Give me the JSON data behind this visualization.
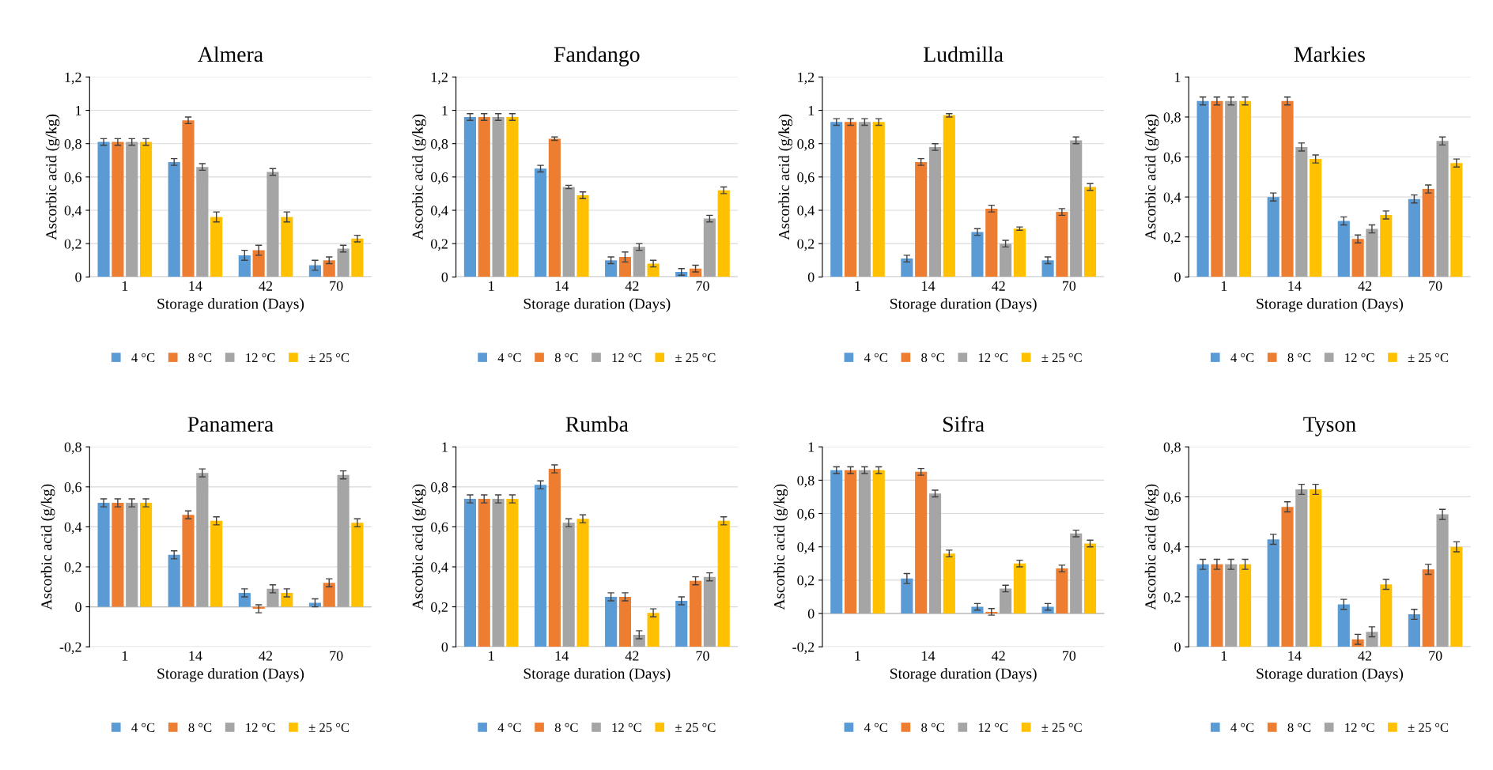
{
  "chart_data": [
    {
      "type": "bar",
      "title": "Almera",
      "xlabel": "Storage duration (Days)",
      "ylabel": "Ascorbic acid (g/kg)",
      "categories": [
        "1",
        "14",
        "42",
        "70"
      ],
      "ylim": [
        0,
        1.2
      ],
      "yticks": [
        0,
        {
          "value": 0.2,
          "label": "0,2"
        },
        {
          "value": 0.4,
          "label": "0,4"
        },
        {
          "value": 0.6,
          "label": "0,6"
        },
        {
          "value": 0.8,
          "label": "0,8"
        },
        1,
        {
          "value": 1.2,
          "label": "1,2"
        }
      ],
      "grid": "y",
      "legend": "bottom",
      "series": [
        {
          "name": "4 °C",
          "color": "#5b9bd5",
          "values": [
            0.81,
            0.69,
            0.13,
            0.07
          ],
          "errors": [
            0.02,
            0.02,
            0.03,
            0.03
          ]
        },
        {
          "name": "8 °C",
          "color": "#ed7d31",
          "values": [
            0.81,
            0.94,
            0.16,
            0.1
          ],
          "errors": [
            0.02,
            0.02,
            0.03,
            0.02
          ]
        },
        {
          "name": "12 °C",
          "color": "#a5a5a5",
          "values": [
            0.81,
            0.66,
            0.63,
            0.17
          ],
          "errors": [
            0.02,
            0.02,
            0.02,
            0.02
          ]
        },
        {
          "name": "± 25 °C",
          "color": "#ffc000",
          "values": [
            0.81,
            0.36,
            0.36,
            0.23
          ],
          "errors": [
            0.02,
            0.03,
            0.03,
            0.02
          ]
        }
      ]
    },
    {
      "type": "bar",
      "title": "Fandango",
      "xlabel": "Storage duration (Days)",
      "ylabel": "Ascorbic acid (g/kg)",
      "categories": [
        "1",
        "14",
        "42",
        "70"
      ],
      "ylim": [
        0,
        1.2
      ],
      "yticks": [
        0,
        {
          "value": 0.2,
          "label": "0,2"
        },
        {
          "value": 0.4,
          "label": "0,4"
        },
        {
          "value": 0.6,
          "label": "0,6"
        },
        {
          "value": 0.8,
          "label": "0,8"
        },
        1,
        {
          "value": 1.2,
          "label": "1,2"
        }
      ],
      "grid": "y",
      "legend": "bottom",
      "series": [
        {
          "name": "4 °C",
          "color": "#5b9bd5",
          "values": [
            0.96,
            0.65,
            0.1,
            0.03
          ],
          "errors": [
            0.02,
            0.02,
            0.02,
            0.02
          ]
        },
        {
          "name": "8 °C",
          "color": "#ed7d31",
          "values": [
            0.96,
            0.83,
            0.12,
            0.05
          ],
          "errors": [
            0.02,
            0.01,
            0.03,
            0.02
          ]
        },
        {
          "name": "12 °C",
          "color": "#a5a5a5",
          "values": [
            0.96,
            0.54,
            0.18,
            0.35
          ],
          "errors": [
            0.02,
            0.01,
            0.02,
            0.02
          ]
        },
        {
          "name": "± 25 °C",
          "color": "#ffc000",
          "values": [
            0.96,
            0.49,
            0.08,
            0.52
          ],
          "errors": [
            0.02,
            0.02,
            0.02,
            0.02
          ]
        }
      ]
    },
    {
      "type": "bar",
      "title": "Ludmilla",
      "xlabel": "Storage duration (Days)",
      "ylabel": "Ascorbic acid (g/kg)",
      "categories": [
        "1",
        "14",
        "42",
        "70"
      ],
      "ylim": [
        0,
        1.2
      ],
      "yticks": [
        0,
        {
          "value": 0.2,
          "label": "0,2"
        },
        {
          "value": 0.4,
          "label": "0,4"
        },
        {
          "value": 0.6,
          "label": "0,6"
        },
        {
          "value": 0.8,
          "label": "0,8"
        },
        1,
        {
          "value": 1.2,
          "label": "1,2"
        }
      ],
      "grid": "y",
      "legend": "bottom",
      "series": [
        {
          "name": "4 °C",
          "color": "#5b9bd5",
          "values": [
            0.93,
            0.11,
            0.27,
            0.1
          ],
          "errors": [
            0.02,
            0.02,
            0.02,
            0.02
          ]
        },
        {
          "name": "8 °C",
          "color": "#ed7d31",
          "values": [
            0.93,
            0.69,
            0.41,
            0.39
          ],
          "errors": [
            0.02,
            0.02,
            0.02,
            0.02
          ]
        },
        {
          "name": "12 °C",
          "color": "#a5a5a5",
          "values": [
            0.93,
            0.78,
            0.2,
            0.82
          ],
          "errors": [
            0.02,
            0.02,
            0.02,
            0.02
          ]
        },
        {
          "name": "± 25 °C",
          "color": "#ffc000",
          "values": [
            0.93,
            0.97,
            0.29,
            0.54
          ],
          "errors": [
            0.02,
            0.01,
            0.01,
            0.02
          ]
        }
      ]
    },
    {
      "type": "bar",
      "title": "Markies",
      "xlabel": "Storage duration (Days)",
      "ylabel": "Ascorbic acid (g/kg)",
      "categories": [
        "1",
        "14",
        "42",
        "70"
      ],
      "ylim": [
        0,
        1
      ],
      "yticks": [
        0,
        {
          "value": 0.2,
          "label": "0,2"
        },
        {
          "value": 0.4,
          "label": "0,4"
        },
        {
          "value": 0.6,
          "label": "0,6"
        },
        {
          "value": 0.8,
          "label": "0,8"
        },
        1
      ],
      "grid": "y",
      "legend": "bottom",
      "series": [
        {
          "name": "4 °C",
          "color": "#5b9bd5",
          "values": [
            0.88,
            0.4,
            0.28,
            0.39
          ],
          "errors": [
            0.02,
            0.02,
            0.02,
            0.02
          ]
        },
        {
          "name": "8 °C",
          "color": "#ed7d31",
          "values": [
            0.88,
            0.88,
            0.19,
            0.44
          ],
          "errors": [
            0.02,
            0.02,
            0.02,
            0.02
          ]
        },
        {
          "name": "12 °C",
          "color": "#a5a5a5",
          "values": [
            0.88,
            0.65,
            0.24,
            0.68
          ],
          "errors": [
            0.02,
            0.02,
            0.02,
            0.02
          ]
        },
        {
          "name": "± 25 °C",
          "color": "#ffc000",
          "values": [
            0.88,
            0.59,
            0.31,
            0.57
          ],
          "errors": [
            0.02,
            0.02,
            0.02,
            0.02
          ]
        }
      ]
    },
    {
      "type": "bar",
      "title": "Panamera",
      "xlabel": "Storage duration (Days)",
      "ylabel": "Ascorbic acid (g/kg)",
      "categories": [
        "1",
        "14",
        "42",
        "70"
      ],
      "ylim": [
        -0.2,
        0.8
      ],
      "yticks": [
        {
          "value": -0.2,
          "label": "-0,2"
        },
        0,
        {
          "value": 0.2,
          "label": "0,2"
        },
        {
          "value": 0.4,
          "label": "0,4"
        },
        {
          "value": 0.6,
          "label": "0,6"
        },
        {
          "value": 0.8,
          "label": "0,8"
        }
      ],
      "grid": "y",
      "legend": "bottom",
      "series": [
        {
          "name": "4 °C",
          "color": "#5b9bd5",
          "values": [
            0.52,
            0.26,
            0.07,
            0.02
          ],
          "errors": [
            0.02,
            0.02,
            0.02,
            0.02
          ]
        },
        {
          "name": "8 °C",
          "color": "#ed7d31",
          "values": [
            0.52,
            0.46,
            -0.01,
            0.12
          ],
          "errors": [
            0.02,
            0.02,
            0.02,
            0.02
          ]
        },
        {
          "name": "12 °C",
          "color": "#a5a5a5",
          "values": [
            0.52,
            0.67,
            0.09,
            0.66
          ],
          "errors": [
            0.02,
            0.02,
            0.02,
            0.02
          ]
        },
        {
          "name": "± 25 °C",
          "color": "#ffc000",
          "values": [
            0.52,
            0.43,
            0.07,
            0.42
          ],
          "errors": [
            0.02,
            0.02,
            0.02,
            0.02
          ]
        }
      ]
    },
    {
      "type": "bar",
      "title": "Rumba",
      "xlabel": "Storage duration (Days)",
      "ylabel": "Ascorbic acid (g/kg)",
      "categories": [
        "1",
        "14",
        "42",
        "70"
      ],
      "ylim": [
        0,
        1
      ],
      "yticks": [
        0,
        {
          "value": 0.2,
          "label": "0,2"
        },
        {
          "value": 0.4,
          "label": "0,4"
        },
        {
          "value": 0.6,
          "label": "0,6"
        },
        {
          "value": 0.8,
          "label": "0,8"
        },
        1
      ],
      "grid": "y",
      "legend": "bottom",
      "series": [
        {
          "name": "4 °C",
          "color": "#5b9bd5",
          "values": [
            0.74,
            0.81,
            0.25,
            0.23
          ],
          "errors": [
            0.02,
            0.02,
            0.02,
            0.02
          ]
        },
        {
          "name": "8 °C",
          "color": "#ed7d31",
          "values": [
            0.74,
            0.89,
            0.25,
            0.33
          ],
          "errors": [
            0.02,
            0.02,
            0.02,
            0.02
          ]
        },
        {
          "name": "12 °C",
          "color": "#a5a5a5",
          "values": [
            0.74,
            0.62,
            0.06,
            0.35
          ],
          "errors": [
            0.02,
            0.02,
            0.02,
            0.02
          ]
        },
        {
          "name": "± 25 °C",
          "color": "#ffc000",
          "values": [
            0.74,
            0.64,
            0.17,
            0.63
          ],
          "errors": [
            0.02,
            0.02,
            0.02,
            0.02
          ]
        }
      ]
    },
    {
      "type": "bar",
      "title": "Sifra",
      "xlabel": "Storage duration (Days)",
      "ylabel": "Ascorbic acid (g/kg)",
      "categories": [
        "1",
        "14",
        "42",
        "70"
      ],
      "ylim": [
        -0.2,
        1
      ],
      "yticks": [
        {
          "value": -0.2,
          "label": "-0,2"
        },
        0,
        {
          "value": 0.2,
          "label": "0,2"
        },
        {
          "value": 0.4,
          "label": "0,4"
        },
        {
          "value": 0.6,
          "label": "0,6"
        },
        {
          "value": 0.8,
          "label": "0,8"
        },
        1
      ],
      "grid": "y",
      "legend": "bottom",
      "series": [
        {
          "name": "4 °C",
          "color": "#5b9bd5",
          "values": [
            0.86,
            0.21,
            0.04,
            0.04
          ],
          "errors": [
            0.02,
            0.03,
            0.02,
            0.02
          ]
        },
        {
          "name": "8 °C",
          "color": "#ed7d31",
          "values": [
            0.86,
            0.85,
            0.01,
            0.27
          ],
          "errors": [
            0.02,
            0.02,
            0.02,
            0.02
          ]
        },
        {
          "name": "12 °C",
          "color": "#a5a5a5",
          "values": [
            0.86,
            0.72,
            0.15,
            0.48
          ],
          "errors": [
            0.02,
            0.02,
            0.02,
            0.02
          ]
        },
        {
          "name": "± 25 °C",
          "color": "#ffc000",
          "values": [
            0.86,
            0.36,
            0.3,
            0.42
          ],
          "errors": [
            0.02,
            0.02,
            0.02,
            0.02
          ]
        }
      ]
    },
    {
      "type": "bar",
      "title": "Tyson",
      "xlabel": "Storage duration (Days)",
      "ylabel": "Ascorbic acid (g/kg)",
      "categories": [
        "1",
        "14",
        "42",
        "70"
      ],
      "ylim": [
        0,
        0.8
      ],
      "yticks": [
        0,
        {
          "value": 0.2,
          "label": "0,2"
        },
        {
          "value": 0.4,
          "label": "0,4"
        },
        {
          "value": 0.6,
          "label": "0,6"
        },
        {
          "value": 0.8,
          "label": "0,8"
        }
      ],
      "grid": "y",
      "legend": "bottom",
      "series": [
        {
          "name": "4 °C",
          "color": "#5b9bd5",
          "values": [
            0.33,
            0.43,
            0.17,
            0.13
          ],
          "errors": [
            0.02,
            0.02,
            0.02,
            0.02
          ]
        },
        {
          "name": "8 °C",
          "color": "#ed7d31",
          "values": [
            0.33,
            0.56,
            0.03,
            0.31
          ],
          "errors": [
            0.02,
            0.02,
            0.02,
            0.02
          ]
        },
        {
          "name": "12 °C",
          "color": "#a5a5a5",
          "values": [
            0.33,
            0.63,
            0.06,
            0.53
          ],
          "errors": [
            0.02,
            0.02,
            0.02,
            0.02
          ]
        },
        {
          "name": "± 25 °C",
          "color": "#ffc000",
          "values": [
            0.33,
            0.63,
            0.25,
            0.4
          ],
          "errors": [
            0.02,
            0.02,
            0.02,
            0.02
          ]
        }
      ]
    }
  ]
}
